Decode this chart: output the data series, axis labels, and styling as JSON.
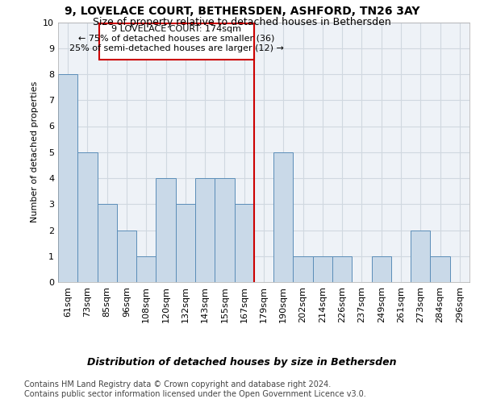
{
  "title": "9, LOVELACE COURT, BETHERSDEN, ASHFORD, TN26 3AY",
  "subtitle": "Size of property relative to detached houses in Bethersden",
  "xlabel_bottom": "Distribution of detached houses by size in Bethersden",
  "ylabel": "Number of detached properties",
  "footer_line1": "Contains HM Land Registry data © Crown copyright and database right 2024.",
  "footer_line2": "Contains public sector information licensed under the Open Government Licence v3.0.",
  "categories": [
    "61sqm",
    "73sqm",
    "85sqm",
    "96sqm",
    "108sqm",
    "120sqm",
    "132sqm",
    "143sqm",
    "155sqm",
    "167sqm",
    "179sqm",
    "190sqm",
    "202sqm",
    "214sqm",
    "226sqm",
    "237sqm",
    "249sqm",
    "261sqm",
    "273sqm",
    "284sqm",
    "296sqm"
  ],
  "values": [
    8,
    5,
    3,
    2,
    1,
    4,
    3,
    4,
    4,
    3,
    0,
    5,
    1,
    1,
    1,
    0,
    1,
    0,
    2,
    1,
    0
  ],
  "bar_color": "#c9d9e8",
  "bar_edge_color": "#5b8db8",
  "annotation_line_bin_index": 10.0,
  "annotation_text_line1": "9 LOVELACE COURT: 174sqm",
  "annotation_text_line2": "← 75% of detached houses are smaller (36)",
  "annotation_text_line3": "25% of semi-detached houses are larger (12) →",
  "annotation_box_color": "#cc0000",
  "vline_color": "#cc0000",
  "ylim": [
    0,
    10
  ],
  "yticks": [
    0,
    1,
    2,
    3,
    4,
    5,
    6,
    7,
    8,
    9,
    10
  ],
  "grid_color": "#d0d8e0",
  "bg_color": "#eef2f7",
  "title_fontsize": 10,
  "subtitle_fontsize": 9,
  "ylabel_fontsize": 8,
  "xlabel_fontsize": 9,
  "footer_fontsize": 7,
  "tick_fontsize": 8,
  "annot_fontsize": 8
}
